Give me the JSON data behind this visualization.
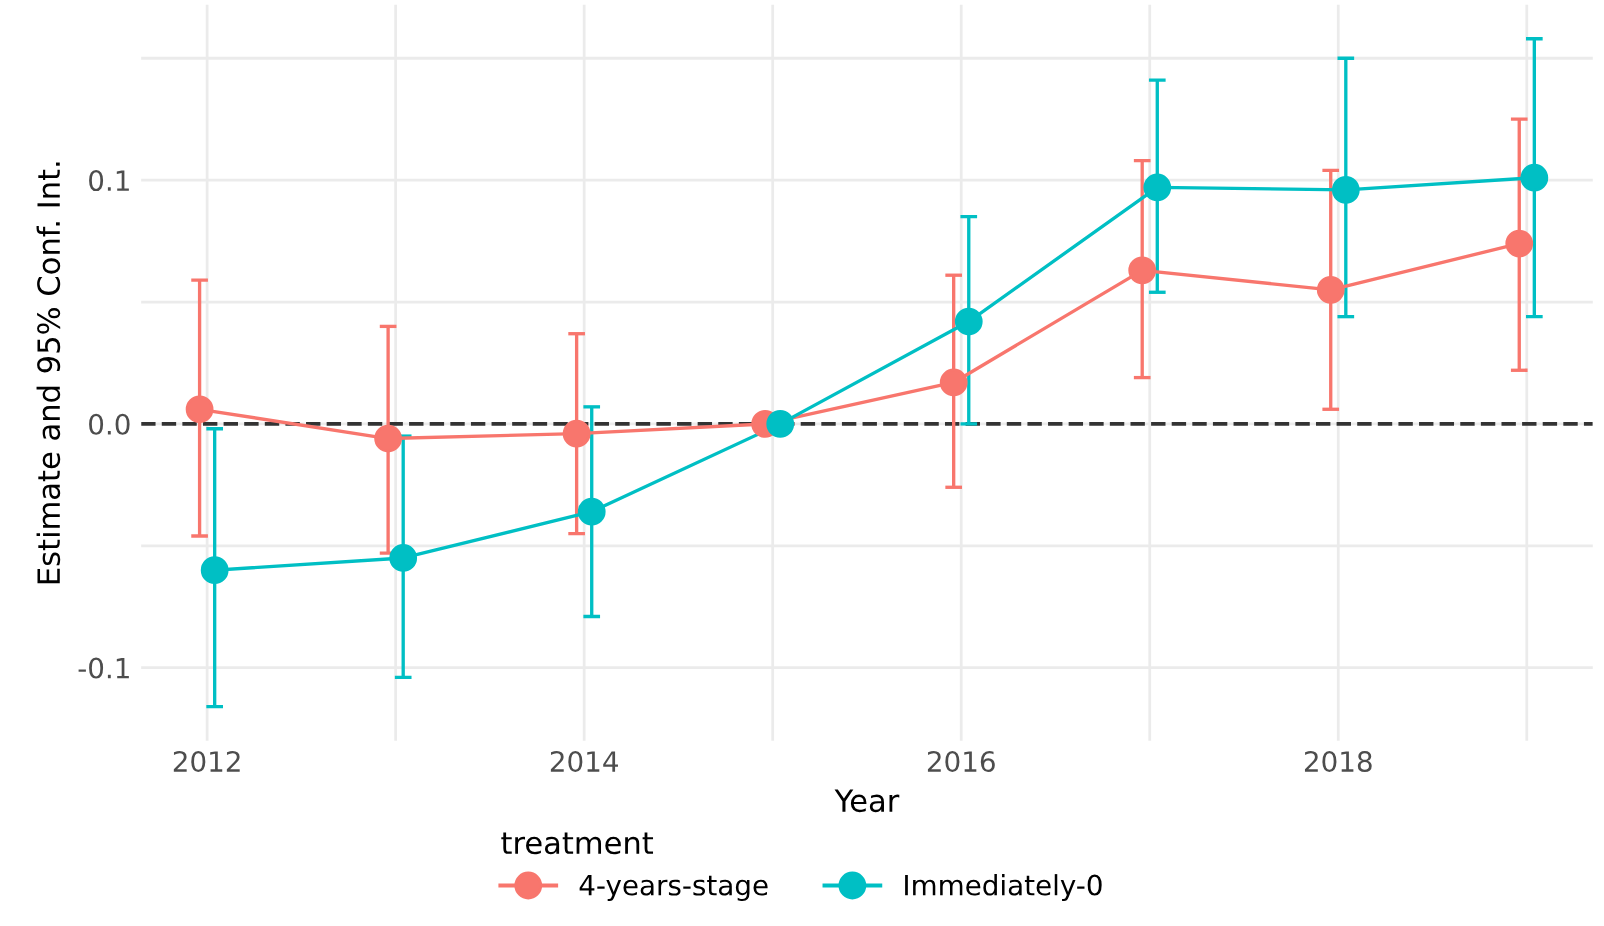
{
  "chart_data": {
    "type": "line",
    "xlabel": "Year",
    "ylabel": "Estimate and 95% Conf. Int.",
    "legend_title": "treatment",
    "legend": "bottom",
    "grid": true,
    "marker": "circle",
    "line_style": "solid",
    "xlim": [
      2011.65,
      2019.35
    ],
    "xticks": [
      2012,
      {
        "value": 2013,
        "label": null
      },
      2014,
      {
        "value": 2015,
        "label": null
      },
      2016,
      {
        "value": 2017,
        "label": null
      },
      2018,
      {
        "value": 2019,
        "label": null
      }
    ],
    "ylim": [
      -0.13,
      0.172
    ],
    "yticks": [
      -0.1,
      {
        "value": -0.05,
        "label": null
      },
      {
        "value": 0,
        "label": "0.0"
      },
      {
        "value": 0.05,
        "label": null
      },
      0.1,
      {
        "value": 0.15,
        "label": null
      }
    ],
    "ref_lines": [
      {
        "axis": "y",
        "value": 0,
        "label": null,
        "color": "#333333",
        "line_style": "dashed"
      }
    ],
    "series": [
      {
        "name": "4-years-stage",
        "color": "#f8766d",
        "x": [
          2011.96,
          2012.96,
          2013.96,
          2014.96,
          2015.96,
          2016.96,
          2017.96,
          2018.96
        ],
        "values": [
          0.006,
          -0.006,
          -0.004,
          0.0,
          0.017,
          0.063,
          0.055,
          0.074
        ],
        "errors": [
          [
            -0.046,
            0.059
          ],
          [
            -0.053,
            0.04
          ],
          [
            -0.045,
            0.037
          ],
          null,
          [
            -0.026,
            0.061
          ],
          [
            0.019,
            0.108
          ],
          [
            0.006,
            0.104
          ],
          [
            0.022,
            0.125
          ]
        ]
      },
      {
        "name": "Immediately-0",
        "color": "#00bfc4",
        "x": [
          2012.04,
          2013.04,
          2014.04,
          2015.04,
          2016.04,
          2017.04,
          2018.04,
          2019.04
        ],
        "values": [
          -0.06,
          -0.055,
          -0.036,
          0.0,
          0.042,
          0.097,
          0.096,
          0.101
        ],
        "errors": [
          [
            -0.116,
            -0.002
          ],
          [
            -0.104,
            -0.005
          ],
          [
            -0.079,
            0.007
          ],
          null,
          [
            0.0,
            0.085
          ],
          [
            0.054,
            0.141
          ],
          [
            0.044,
            0.15
          ],
          [
            0.044,
            0.158
          ]
        ]
      }
    ]
  }
}
